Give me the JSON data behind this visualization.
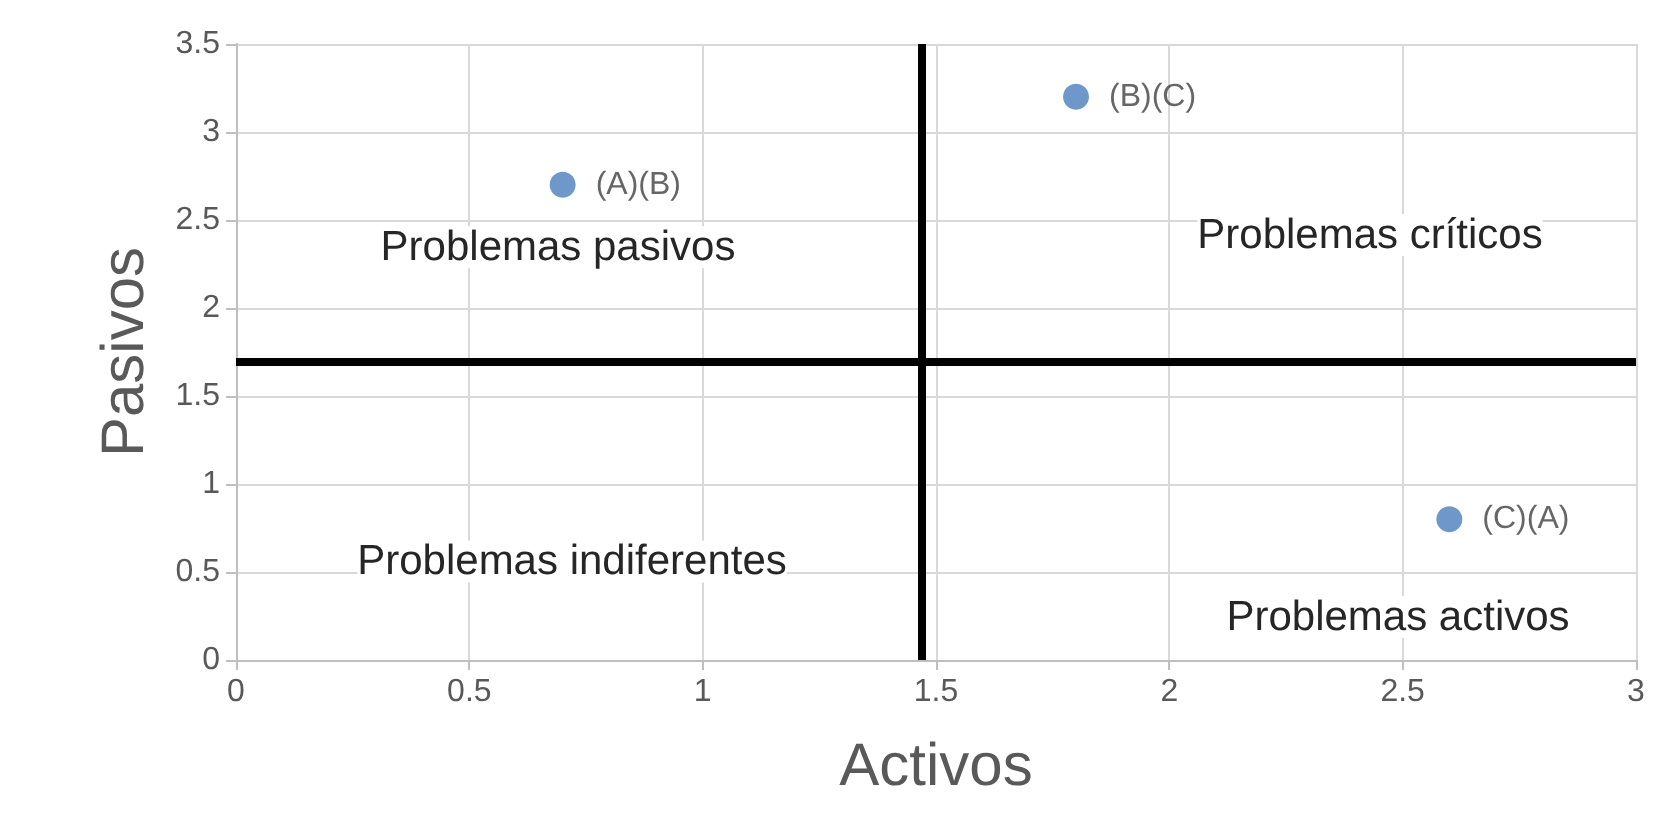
{
  "chart_data": {
    "type": "scatter",
    "xlabel": "Activos",
    "ylabel": "Pasivos",
    "x": [
      0.7,
      1.8,
      2.6
    ],
    "values": [
      2.7,
      3.2,
      0.8
    ],
    "color": "#4a7ebb",
    "value_labels": [
      "(A)(B)",
      "(B)(C)",
      "(C)(A)"
    ],
    "xlim": [
      0,
      3
    ],
    "xticks": [
      0,
      0.5,
      1,
      1.5,
      2,
      2.5,
      3
    ],
    "ylim": [
      0,
      3.5
    ],
    "yticks": [
      0,
      0.5,
      1,
      1.5,
      2,
      2.5,
      3,
      3.5
    ],
    "grid": true,
    "marker": "circle",
    "ref_lines": [
      {
        "axis": "x",
        "value": 1.47,
        "color": "#000000"
      },
      {
        "axis": "y",
        "value": 1.7,
        "color": "#000000"
      }
    ],
    "annotations": [
      "Problemas pasivos",
      "Problemas críticos",
      "Problemas indiferentes",
      "Problemas activos"
    ]
  }
}
